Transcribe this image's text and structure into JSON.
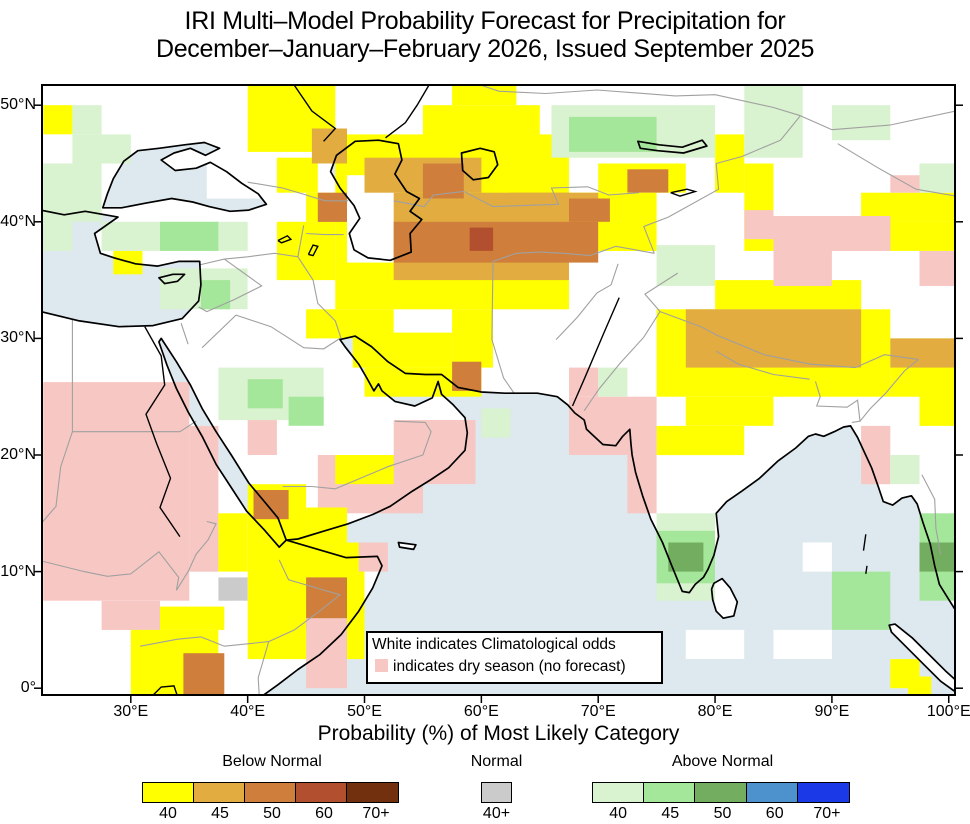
{
  "title": {
    "line1": "IRI Multi–Model Probability Forecast for Precipitation for",
    "line2": "December–January–February 2026, Issued September 2025"
  },
  "subtitle": "Probability (%) of Most Likely Category",
  "inset": {
    "line1": "White indicates Climatological odds",
    "line2": "indicates dry season (no forecast)"
  },
  "axes": {
    "x_ticks": [
      {
        "v": 30,
        "label": "30°E"
      },
      {
        "v": 40,
        "label": "40°E"
      },
      {
        "v": 50,
        "label": "50°E"
      },
      {
        "v": 60,
        "label": "60°E"
      },
      {
        "v": 70,
        "label": "70°E"
      },
      {
        "v": 80,
        "label": "80°E"
      },
      {
        "v": 90,
        "label": "90°E"
      },
      {
        "v": 100,
        "label": "100°E"
      }
    ],
    "y_ticks": [
      {
        "v": 0,
        "label": "0°"
      },
      {
        "v": 10,
        "label": "10°N"
      },
      {
        "v": 20,
        "label": "20°N"
      },
      {
        "v": 30,
        "label": "30°N"
      },
      {
        "v": 40,
        "label": "40°N"
      },
      {
        "v": 50,
        "label": "50°N"
      }
    ]
  },
  "legend": {
    "groups": [
      {
        "title": "Below Normal",
        "swatches": [
          {
            "label": "40",
            "color": "#FFFF00"
          },
          {
            "label": "45",
            "color": "#E2AC40"
          },
          {
            "label": "50",
            "color": "#CF7F3B"
          },
          {
            "label": "60",
            "color": "#B24F2E"
          },
          {
            "label": "70+",
            "color": "#72300F"
          }
        ]
      },
      {
        "title": "Normal",
        "swatches": [
          {
            "label": "40+",
            "color": "#CBCBCB"
          }
        ]
      },
      {
        "title": "Above Normal",
        "swatches": [
          {
            "label": "40",
            "color": "#D9F2CF"
          },
          {
            "label": "45",
            "color": "#A5E79A"
          },
          {
            "label": "50",
            "color": "#73AD60"
          },
          {
            "label": "60",
            "color": "#4D92CD"
          },
          {
            "label": "70+",
            "color": "#1C39E8"
          }
        ]
      }
    ]
  },
  "colors": {
    "ocean": "#DEE9EF",
    "land": "#FFFFFF",
    "coast": "#000000",
    "border": "#A0A0A0",
    "frame": "#000000",
    "dry": "#F7C8C3"
  },
  "chart_data": {
    "type": "choropleth-grid",
    "projection": "equirectangular",
    "lon_range": [
      22.4,
      100.5
    ],
    "lat_range": [
      -0.6,
      51.7
    ],
    "grid_deg": 2.5,
    "cell_categories": {
      "bn40": "#FFFF00",
      "bn45": "#E2AC40",
      "bn50": "#CF7F3B",
      "bn60": "#B24F2E",
      "bn70": "#72300F",
      "n40": "#CBCBCB",
      "an40": "#D9F2CF",
      "an45": "#A5E79A",
      "an50": "#73AD60",
      "an60": "#4D92CD",
      "an70": "#1C39E8",
      "dry": "#F7C8C3",
      "wh": "#FFFFFF"
    },
    "patches": [
      [
        "wh",
        36.5,
        42,
        41,
        45
      ],
      [
        "wh",
        85,
        2.5,
        90,
        5
      ],
      [
        "wh",
        77.5,
        2.5,
        82.5,
        5
      ],
      [
        "wh",
        87.5,
        10,
        90,
        12.5
      ],
      [
        "dry",
        22.5,
        7.5,
        35,
        26.25
      ],
      [
        "dry",
        35,
        10,
        37.5,
        22.5
      ],
      [
        "dry",
        27.5,
        5,
        32.5,
        7.5
      ],
      [
        "dry",
        40,
        20,
        42.5,
        23.5
      ],
      [
        "dry",
        46,
        15,
        55,
        20
      ],
      [
        "dry",
        52.5,
        17.5,
        59.5,
        23
      ],
      [
        "bn40",
        22.5,
        47.5,
        25,
        50
      ],
      [
        "bn40",
        40,
        46,
        47.5,
        51.7
      ],
      [
        "bn40",
        42.5,
        42.5,
        46,
        45.5
      ],
      [
        "bn40",
        45,
        40,
        50,
        42.5
      ],
      [
        "bn40",
        42.5,
        35,
        47.5,
        40
      ],
      [
        "bn40",
        47.5,
        32.5,
        67.5,
        47.5
      ],
      [
        "bn40",
        67.5,
        37.5,
        75,
        42.5
      ],
      [
        "bn40",
        55,
        45,
        65,
        50
      ],
      [
        "bn40",
        57.5,
        50,
        63,
        51.7
      ],
      [
        "bn40",
        45,
        30,
        52.5,
        32.5
      ],
      [
        "bn40",
        49,
        27.5,
        57.5,
        30.5
      ],
      [
        "bn40",
        50,
        25,
        60,
        27.5
      ],
      [
        "bn40",
        57.5,
        27.5,
        61,
        32.5
      ],
      [
        "bn40",
        70,
        42.5,
        77.5,
        45
      ],
      [
        "bn40",
        28.5,
        35.5,
        31,
        37.5
      ],
      [
        "bn40",
        47.5,
        17.5,
        52.5,
        20
      ],
      [
        "bn40",
        40,
        12.5,
        45,
        17.5
      ],
      [
        "bn40",
        45,
        12.5,
        48.5,
        15.5
      ],
      [
        "bn40",
        37.5,
        10,
        40,
        15
      ],
      [
        "bn40",
        40,
        2.5,
        50,
        12.5
      ],
      [
        "bn40",
        30,
        -0.6,
        37.5,
        5
      ],
      [
        "bn40",
        32.5,
        5,
        38,
        7
      ],
      [
        "bn40",
        75,
        25,
        95,
        32.5
      ],
      [
        "bn40",
        80,
        32.5,
        92.5,
        35
      ],
      [
        "bn40",
        95,
        25,
        100.5,
        30
      ],
      [
        "bn40",
        82.5,
        37.5,
        100.5,
        40
      ],
      [
        "bn40",
        92.5,
        40,
        100.5,
        42.5
      ],
      [
        "bn40",
        82.5,
        40,
        85,
        45
      ],
      [
        "bn40",
        80,
        42.5,
        82.5,
        47.5
      ],
      [
        "bn40",
        75,
        20,
        82.5,
        22.5
      ],
      [
        "bn40",
        77.5,
        22.5,
        85,
        25
      ],
      [
        "bn40",
        97.5,
        22.5,
        100.5,
        27.5
      ],
      [
        "bn40",
        95,
        0,
        97.5,
        2.5
      ],
      [
        "bn40",
        96.5,
        -0.6,
        98.5,
        1
      ],
      [
        "wh",
        48.5,
        36.5,
        53,
        44
      ],
      [
        "bn45",
        45.5,
        45,
        48.5,
        48
      ],
      [
        "bn45",
        50,
        42.5,
        60,
        45.5
      ],
      [
        "bn45",
        52.5,
        35,
        67.5,
        42.5
      ],
      [
        "bn45",
        62.5,
        40,
        70,
        42.5
      ],
      [
        "bn45",
        77.5,
        27.5,
        92.5,
        32.5
      ],
      [
        "bn45",
        95,
        27.5,
        100.5,
        30
      ],
      [
        "bn50",
        46,
        40,
        48.5,
        42.5
      ],
      [
        "bn50",
        55,
        42,
        58.5,
        45
      ],
      [
        "bn50",
        52.5,
        36.5,
        70,
        40
      ],
      [
        "bn50",
        67.5,
        40,
        71,
        42
      ],
      [
        "bn50",
        72.5,
        42.5,
        76,
        44.5
      ],
      [
        "bn50",
        57.5,
        25.5,
        60,
        28
      ],
      [
        "bn50",
        40.5,
        14.5,
        43.5,
        17
      ],
      [
        "bn50",
        45,
        5,
        48.5,
        9.5
      ],
      [
        "bn50",
        34.5,
        -0.6,
        38,
        3
      ],
      [
        "bn60",
        59,
        37.5,
        61,
        39.5
      ],
      [
        "dry",
        45,
        0,
        48.5,
        6
      ],
      [
        "dry",
        49.5,
        10,
        52,
        12.5
      ],
      [
        "dry",
        85,
        37.5,
        95,
        40.5
      ],
      [
        "dry",
        85,
        34.5,
        90,
        37.5
      ],
      [
        "dry",
        97.5,
        34.5,
        100.5,
        37.5
      ],
      [
        "dry",
        95,
        42.5,
        97.5,
        44
      ],
      [
        "dry",
        82.5,
        38.5,
        85,
        41
      ],
      [
        "dry",
        67.5,
        20,
        75,
        25
      ],
      [
        "dry",
        67.5,
        25,
        70,
        27.5
      ],
      [
        "dry",
        72.5,
        15,
        75,
        20
      ],
      [
        "dry",
        92.5,
        17.5,
        95,
        22.5
      ],
      [
        "an40",
        25,
        45,
        30,
        47.5
      ],
      [
        "an40",
        25,
        47.5,
        27.5,
        50
      ],
      [
        "an40",
        22.5,
        40,
        27.5,
        45
      ],
      [
        "an40",
        22.5,
        37.5,
        25,
        40
      ],
      [
        "an40",
        27.5,
        37.5,
        40,
        40
      ],
      [
        "an45",
        32.5,
        37.5,
        37.5,
        40
      ],
      [
        "an40",
        32.5,
        32.5,
        40,
        36
      ],
      [
        "an45",
        36,
        32.5,
        38.5,
        35
      ],
      [
        "an40",
        37.5,
        23,
        46.5,
        27.5
      ],
      [
        "an45",
        40,
        24,
        43,
        26.5
      ],
      [
        "an45",
        43.5,
        22.5,
        46.5,
        25
      ],
      [
        "an40",
        60,
        21.5,
        62.5,
        24
      ],
      [
        "an40",
        66,
        45.5,
        80,
        50
      ],
      [
        "an45",
        67.5,
        46,
        75,
        49
      ],
      [
        "an40",
        82.5,
        45.5,
        87.5,
        51.7
      ],
      [
        "an40",
        90,
        47,
        95,
        50
      ],
      [
        "an40",
        97.5,
        42.5,
        100.5,
        45
      ],
      [
        "an40",
        75,
        34.5,
        80,
        38
      ],
      [
        "an40",
        75,
        7.5,
        80,
        15
      ],
      [
        "an45",
        75,
        9,
        80,
        13.5
      ],
      [
        "an50",
        76,
        10,
        79,
        12.5
      ],
      [
        "an40",
        95,
        17.5,
        97.5,
        20
      ],
      [
        "an45",
        90,
        5,
        95,
        10
      ],
      [
        "an45",
        97.5,
        7.5,
        100.5,
        15
      ],
      [
        "an50",
        97.5,
        10,
        100.5,
        12.5
      ],
      [
        "an40",
        70,
        25,
        72.5,
        27.5
      ],
      [
        "n40",
        37.5,
        7.5,
        40,
        9.5
      ]
    ]
  }
}
